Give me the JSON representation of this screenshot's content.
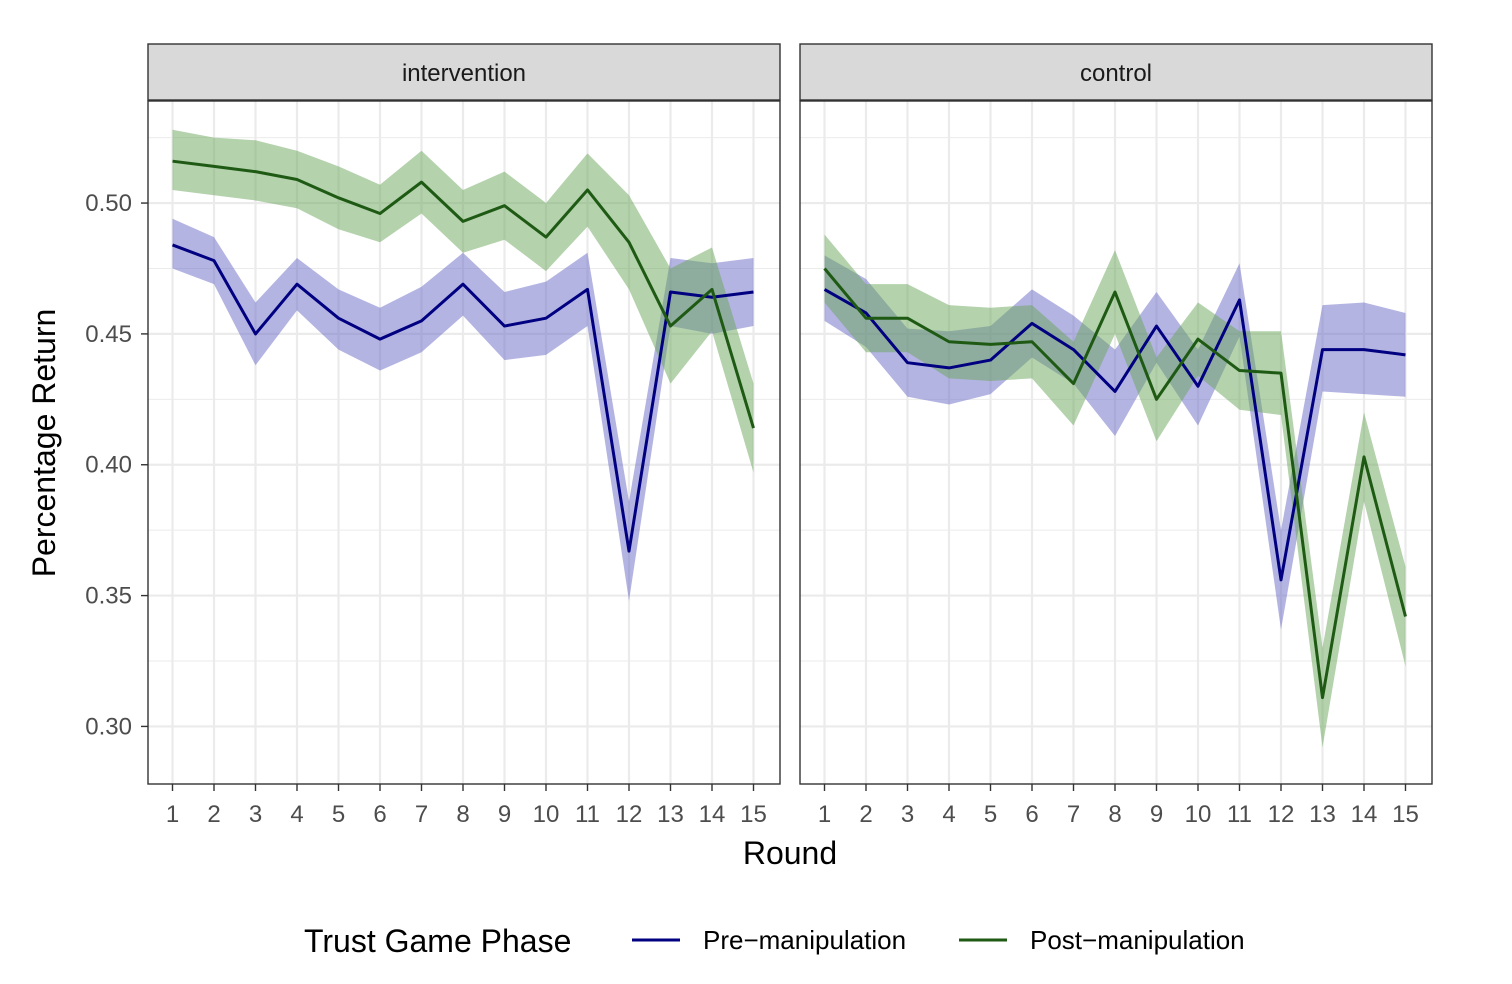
{
  "chart_data": {
    "type": "line",
    "xlabel": "Round",
    "ylabel": "Percentage Return",
    "x": [
      1,
      2,
      3,
      4,
      5,
      6,
      7,
      8,
      9,
      10,
      11,
      12,
      13,
      14,
      15
    ],
    "x_tick_labels": [
      "1",
      "2",
      "3",
      "4",
      "5",
      "6",
      "7",
      "8",
      "9",
      "10",
      "11",
      "12",
      "13",
      "14",
      "15"
    ],
    "ylim": [
      0.278,
      0.539
    ],
    "y_ticks": [
      0.3,
      0.35,
      0.4,
      0.45,
      0.5
    ],
    "y_tick_labels": [
      "0.30",
      "0.35",
      "0.40",
      "0.45",
      "0.50"
    ],
    "grid": true,
    "legend": {
      "title": "Trust Game Phase",
      "position": "bottom",
      "entries": [
        "Pre−manipulation",
        "Post−manipulation"
      ]
    },
    "colors": {
      "pre_line": "#000080",
      "pre_band": "#6a6ac8",
      "post_line": "#1e5a14",
      "post_band": "#6aa55a",
      "strip_fill": "#d9d9d9",
      "grid": "#ebebeb"
    },
    "panels": [
      {
        "strip_label": "intervention",
        "series": [
          {
            "name": "Pre−manipulation",
            "values": [
              0.484,
              0.478,
              0.45,
              0.469,
              0.456,
              0.448,
              0.455,
              0.469,
              0.453,
              0.456,
              0.467,
              0.367,
              0.466,
              0.464,
              0.466
            ],
            "lower": [
              0.475,
              0.469,
              0.438,
              0.459,
              0.444,
              0.436,
              0.443,
              0.457,
              0.44,
              0.442,
              0.453,
              0.348,
              0.453,
              0.45,
              0.453
            ],
            "upper": [
              0.494,
              0.487,
              0.462,
              0.479,
              0.467,
              0.46,
              0.468,
              0.481,
              0.466,
              0.47,
              0.481,
              0.386,
              0.479,
              0.477,
              0.479
            ]
          },
          {
            "name": "Post−manipulation",
            "values": [
              0.516,
              0.514,
              0.512,
              0.509,
              0.502,
              0.496,
              0.508,
              0.493,
              0.499,
              0.487,
              0.505,
              0.485,
              0.453,
              0.467,
              0.414
            ],
            "lower": [
              0.505,
              0.503,
              0.501,
              0.498,
              0.49,
              0.485,
              0.496,
              0.481,
              0.486,
              0.474,
              0.491,
              0.467,
              0.431,
              0.451,
              0.397
            ],
            "upper": [
              0.528,
              0.525,
              0.524,
              0.52,
              0.514,
              0.507,
              0.52,
              0.505,
              0.512,
              0.5,
              0.519,
              0.503,
              0.475,
              0.483,
              0.431
            ]
          }
        ]
      },
      {
        "strip_label": "control",
        "series": [
          {
            "name": "Pre−manipulation",
            "values": [
              0.467,
              0.458,
              0.439,
              0.437,
              0.44,
              0.454,
              0.444,
              0.428,
              0.453,
              0.43,
              0.463,
              0.356,
              0.444,
              0.444,
              0.442
            ],
            "lower": [
              0.455,
              0.445,
              0.426,
              0.423,
              0.427,
              0.441,
              0.431,
              0.411,
              0.439,
              0.415,
              0.449,
              0.337,
              0.428,
              0.427,
              0.426
            ],
            "upper": [
              0.48,
              0.471,
              0.452,
              0.451,
              0.453,
              0.467,
              0.457,
              0.444,
              0.466,
              0.444,
              0.477,
              0.375,
              0.461,
              0.462,
              0.458
            ]
          },
          {
            "name": "Post−manipulation",
            "values": [
              0.475,
              0.456,
              0.456,
              0.447,
              0.446,
              0.447,
              0.431,
              0.466,
              0.425,
              0.448,
              0.436,
              0.435,
              0.311,
              0.403,
              0.342
            ],
            "lower": [
              0.462,
              0.443,
              0.443,
              0.433,
              0.432,
              0.433,
              0.415,
              0.45,
              0.409,
              0.434,
              0.421,
              0.419,
              0.292,
              0.386,
              0.323
            ],
            "upper": [
              0.488,
              0.469,
              0.469,
              0.461,
              0.46,
              0.461,
              0.447,
              0.482,
              0.441,
              0.462,
              0.451,
              0.451,
              0.33,
              0.42,
              0.361
            ]
          }
        ]
      }
    ]
  }
}
